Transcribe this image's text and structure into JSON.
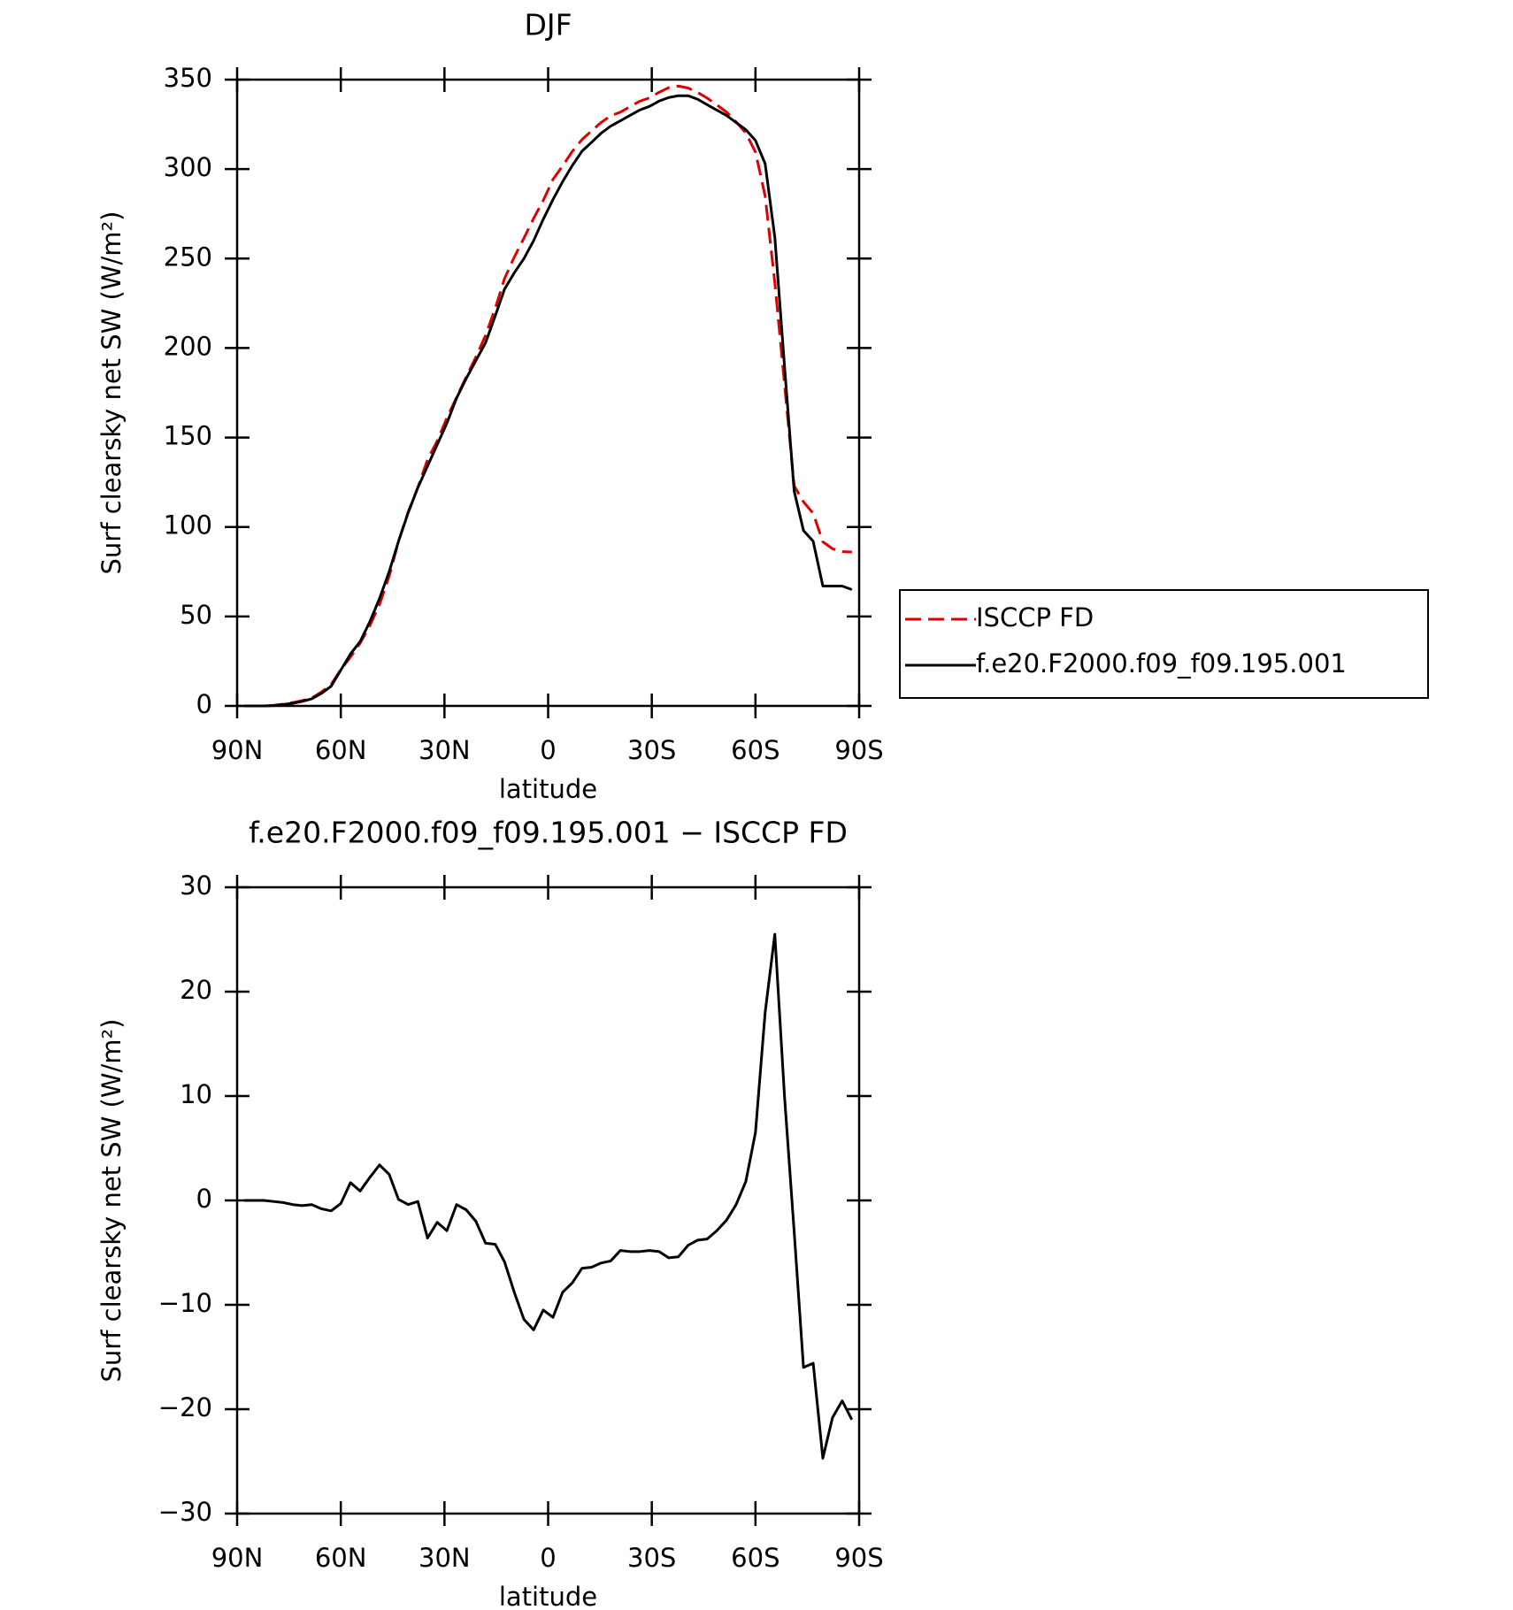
{
  "chart_data": [
    {
      "type": "line",
      "title": "DJF",
      "xlabel": "latitude",
      "ylabel": "Surf clearsky net SW (W/m²)",
      "x": [
        87.9,
        85.1,
        82.3,
        79.5,
        76.7,
        73.9,
        71.2,
        68.4,
        65.6,
        62.8,
        60.0,
        57.2,
        54.4,
        51.6,
        48.8,
        46.0,
        43.3,
        40.5,
        37.7,
        34.9,
        32.1,
        29.3,
        26.5,
        23.7,
        20.9,
        18.1,
        15.3,
        12.6,
        9.8,
        7.0,
        4.2,
        1.4,
        -1.4,
        -4.2,
        -7.0,
        -9.8,
        -12.6,
        -15.3,
        -18.1,
        -20.9,
        -23.7,
        -26.5,
        -29.3,
        -32.1,
        -34.9,
        -37.7,
        -40.5,
        -43.3,
        -46.0,
        -48.8,
        -51.6,
        -54.4,
        -57.2,
        -60.0,
        -62.8,
        -65.6,
        -68.4,
        -71.2,
        -73.9,
        -76.7,
        -79.5,
        -82.3,
        -85.1,
        -87.9
      ],
      "series": [
        {
          "name": "ISCCP FD",
          "color": "#e00000",
          "dash": true,
          "values": [
            0,
            0,
            0,
            0.3,
            1.0,
            1.9,
            3.0,
            4.4,
            7.8,
            12,
            20.3,
            27.3,
            35.1,
            44.8,
            56.6,
            72.5,
            91.9,
            108.4,
            122.1,
            137.6,
            148.1,
            160.9,
            172.4,
            183.9,
            195,
            207.1,
            222.2,
            238.9,
            250.8,
            261.4,
            272.4,
            282.5,
            294.2,
            301.8,
            309.9,
            316.5,
            321.4,
            326,
            329.8,
            331.8,
            334.9,
            337.9,
            339.8,
            342.9,
            345.5,
            346.4,
            345.3,
            342.8,
            339.7,
            335.9,
            331.9,
            326.4,
            320.2,
            309.5,
            285,
            236.5,
            180,
            123,
            114,
            107.6,
            91.7,
            87.8,
            86.2,
            86
          ]
        },
        {
          "name": "f.e20.F2000.f09_f09.195.001",
          "color": "#000000",
          "dash": false,
          "values": [
            0,
            0,
            0,
            0.2,
            0.8,
            1.5,
            2.5,
            4,
            7,
            11,
            20,
            29,
            36,
            47,
            60,
            75,
            92,
            108,
            122,
            134,
            146,
            158,
            172,
            183,
            193,
            203,
            218,
            233,
            242,
            250,
            260,
            272,
            283,
            293,
            302,
            310,
            315,
            320,
            324,
            327,
            330,
            333,
            335,
            338,
            340,
            341,
            341,
            339,
            336,
            333,
            330,
            326,
            322,
            316,
            303,
            262,
            190,
            120,
            98,
            92,
            67,
            67,
            67,
            65
          ]
        }
      ],
      "xlim": [
        90,
        -90
      ],
      "xticks": [
        {
          "value": 90,
          "label": "90N"
        },
        {
          "value": 60,
          "label": "60N"
        },
        {
          "value": 30,
          "label": "30N"
        },
        0,
        {
          "value": -30,
          "label": "30S"
        },
        {
          "value": -60,
          "label": "60S"
        },
        {
          "value": -90,
          "label": "90S"
        }
      ],
      "ylim": [
        0,
        350
      ],
      "yticks": [
        0,
        50,
        100,
        150,
        200,
        250,
        300,
        350
      ],
      "legend": "right"
    },
    {
      "type": "line",
      "title": "f.e20.F2000.f09_f09.195.001 − ISCCP FD",
      "xlabel": "latitude",
      "ylabel": "Surf clearsky net SW (W/m²)",
      "x": [
        87.9,
        85.1,
        82.3,
        79.5,
        76.7,
        73.9,
        71.2,
        68.4,
        65.6,
        62.8,
        60.0,
        57.2,
        54.4,
        51.6,
        48.8,
        46.0,
        43.3,
        40.5,
        37.7,
        34.9,
        32.1,
        29.3,
        26.5,
        23.7,
        20.9,
        18.1,
        15.3,
        12.6,
        9.8,
        7.0,
        4.2,
        1.4,
        -1.4,
        -4.2,
        -7.0,
        -9.8,
        -12.6,
        -15.3,
        -18.1,
        -20.9,
        -23.7,
        -26.5,
        -29.3,
        -32.1,
        -34.9,
        -37.7,
        -40.5,
        -43.3,
        -46.0,
        -48.8,
        -51.6,
        -54.4,
        -57.2,
        -60.0,
        -62.8,
        -65.6,
        -68.4,
        -71.2,
        -73.9,
        -76.7,
        -79.5,
        -82.3,
        -85.1,
        -87.9
      ],
      "series": [
        {
          "color": "#000000",
          "dash": false,
          "values": [
            0,
            0,
            0,
            -0.1,
            -0.2,
            -0.4,
            -0.5,
            -0.4,
            -0.8,
            -1.0,
            -0.3,
            1.7,
            0.9,
            2.2,
            3.4,
            2.5,
            0.1,
            -0.4,
            -0.1,
            -3.6,
            -2.1,
            -2.9,
            -0.4,
            -0.9,
            -2.0,
            -4.1,
            -4.2,
            -5.9,
            -8.8,
            -11.4,
            -12.4,
            -10.5,
            -11.2,
            -8.8,
            -7.9,
            -6.5,
            -6.4,
            -6.0,
            -5.8,
            -4.8,
            -4.9,
            -4.9,
            -4.8,
            -4.9,
            -5.5,
            -5.4,
            -4.3,
            -3.8,
            -3.7,
            -2.9,
            -1.9,
            -0.4,
            1.8,
            6.5,
            18,
            25.5,
            10,
            -3,
            -16,
            -15.6,
            -24.7,
            -20.8,
            -19.2,
            -21
          ]
        }
      ],
      "xlim": [
        90,
        -90
      ],
      "xticks": [
        {
          "value": 90,
          "label": "90N"
        },
        {
          "value": 60,
          "label": "60N"
        },
        {
          "value": 30,
          "label": "30N"
        },
        0,
        {
          "value": -30,
          "label": "30S"
        },
        {
          "value": -60,
          "label": "60S"
        },
        {
          "value": -90,
          "label": "90S"
        }
      ],
      "ylim": [
        -30,
        30
      ],
      "yticks": [
        {
          "value": -30,
          "label": "−30"
        },
        {
          "value": -20,
          "label": "−20"
        },
        {
          "value": -10,
          "label": "−10"
        },
        0,
        10,
        20,
        30
      ]
    }
  ]
}
